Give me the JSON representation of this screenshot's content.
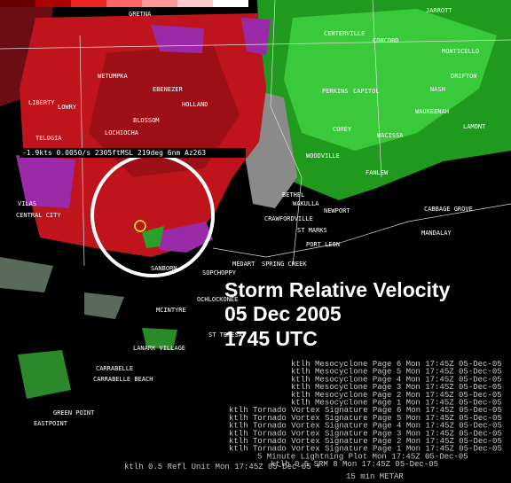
{
  "overlay": {
    "product": "Storm Relative Velocity",
    "date": "05 Dec 2005",
    "time": "1745 UTC"
  },
  "readout": "-1.9kts 0.0050/s 2305ftMSL 219deg 6nm Az263",
  "towns": [
    "JARROTT",
    "CONCORD",
    "CENTERVILLE",
    "MONTICELLO",
    "DRIFTON",
    "NASH",
    "CAPITOL",
    "PERKINS",
    "WAUKEENAH",
    "LAMONT",
    "WACISSA",
    "COREY",
    "WOODVILLE",
    "FANLEW",
    "BETHEL",
    "WAKULLA",
    "NEWPORT",
    "CABBAGE GROVE",
    "CRAWFORDVILLE",
    "ST MARKS",
    "PORT LEON",
    "MANDALAY",
    "SOPCHOPPY",
    "MEDART",
    "SPRING CREEK",
    "OCHLOCKONEE",
    "MCINTYRE",
    "ST TERESA",
    "LANARK VILLAGE",
    "CARRABELLE",
    "CARRABELLE BEACH",
    "EASTPOINT",
    "GREEN POINT",
    "VILAS",
    "CENTRAL CITY",
    "SANBORN",
    "LIBERTY",
    "TELOGIA",
    "WETUMPKA",
    "EBENEZER",
    "HOLLAND",
    "LOWRY",
    "BLOSSOM",
    "LOCHIOCHA",
    "GRETNA"
  ],
  "product_list": [
    "ktlh Mesocyclone Page 6  Mon 17:45Z 05-Dec-05",
    "ktlh Mesocyclone Page 5  Mon 17:45Z 05-Dec-05",
    "ktlh Mesocyclone Page 4  Mon 17:45Z 05-Dec-05",
    "ktlh Mesocyclone Page 3  Mon 17:45Z 05-Dec-05",
    "ktlh Mesocyclone Page 2  Mon 17:45Z 05-Dec-05",
    "ktlh Mesocyclone Page 1  Mon 17:45Z 05-Dec-05",
    "ktlh Tornado Vortex Signature Page 6 Mon 17:45Z 05-Dec-05",
    "ktlh Tornado Vortex Signature Page 5 Mon 17:45Z 05-Dec-05",
    "ktlh Tornado Vortex Signature Page 4 Mon 17:45Z 05-Dec-05",
    "ktlh Tornado Vortex Signature Page 3 Mon 17:45Z 05-Dec-05",
    "ktlh Tornado Vortex Signature Page 2 Mon 17:45Z 05-Dec-05",
    "ktlh Tornado Vortex Signature Page 1 Mon 17:45Z 05-Dec-05",
    "5 Minute Lightning Plot Mon 17:45Z 05-Dec-05",
    "ktlh 0.5 SRM 8 Mon 17:45Z 05-Dec-05"
  ],
  "refl_line": "ktlh 0.5 Refl Unit Mon 17:45Z 05-Dec-05 +",
  "metar_line": "15 min METAR"
}
